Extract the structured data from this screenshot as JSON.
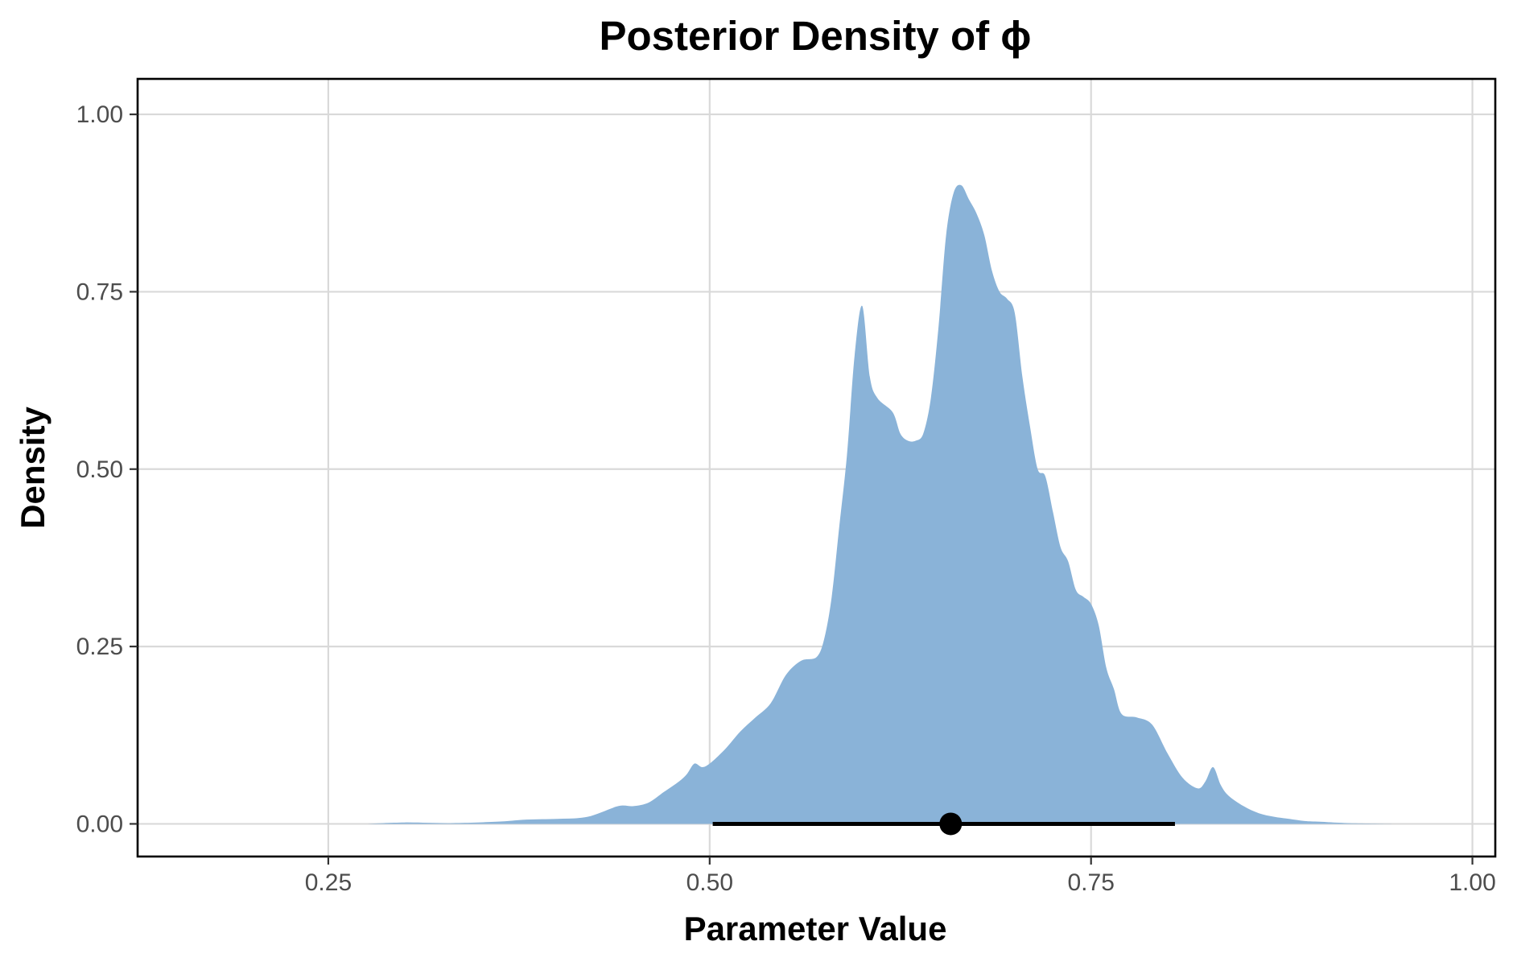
{
  "chart_data": {
    "type": "area",
    "title": "Posterior Density of ϕ",
    "xlabel": "Parameter Value",
    "ylabel": "Density",
    "xlim": [
      0.125,
      1.015
    ],
    "ylim": [
      -0.046,
      1.05
    ],
    "x_ticks": [
      {
        "value": 0.25,
        "label": "0.25"
      },
      {
        "value": 0.5,
        "label": "0.50"
      },
      {
        "value": 0.75,
        "label": "0.75"
      },
      {
        "value": 1.0,
        "label": "1.00"
      }
    ],
    "y_ticks": [
      {
        "value": 0.0,
        "label": "0.00"
      },
      {
        "value": 0.25,
        "label": "0.25"
      },
      {
        "value": 0.5,
        "label": "0.50"
      },
      {
        "value": 0.75,
        "label": "0.75"
      },
      {
        "value": 1.0,
        "label": "1.00"
      }
    ],
    "grid": true,
    "legend": "none",
    "fill_color": "#8ab3d8",
    "point_color": "#000000",
    "density": {
      "x": [
        0.275,
        0.3,
        0.33,
        0.36,
        0.38,
        0.4,
        0.42,
        0.44,
        0.45,
        0.46,
        0.47,
        0.48,
        0.485,
        0.49,
        0.495,
        0.5,
        0.51,
        0.52,
        0.53,
        0.54,
        0.55,
        0.56,
        0.57,
        0.575,
        0.58,
        0.585,
        0.59,
        0.595,
        0.6,
        0.605,
        0.61,
        0.62,
        0.625,
        0.63,
        0.635,
        0.64,
        0.645,
        0.65,
        0.655,
        0.66,
        0.665,
        0.67,
        0.675,
        0.68,
        0.685,
        0.69,
        0.695,
        0.7,
        0.705,
        0.71,
        0.715,
        0.72,
        0.725,
        0.73,
        0.735,
        0.74,
        0.745,
        0.75,
        0.755,
        0.76,
        0.765,
        0.77,
        0.78,
        0.79,
        0.8,
        0.81,
        0.82,
        0.825,
        0.83,
        0.835,
        0.84,
        0.85,
        0.86,
        0.87,
        0.88,
        0.89,
        0.9,
        0.92,
        0.95
      ],
      "y": [
        0.0,
        0.002,
        0.001,
        0.003,
        0.006,
        0.007,
        0.01,
        0.025,
        0.025,
        0.03,
        0.045,
        0.06,
        0.07,
        0.085,
        0.08,
        0.085,
        0.105,
        0.13,
        0.15,
        0.17,
        0.21,
        0.23,
        0.235,
        0.26,
        0.32,
        0.42,
        0.52,
        0.66,
        0.73,
        0.63,
        0.6,
        0.58,
        0.55,
        0.54,
        0.54,
        0.55,
        0.6,
        0.7,
        0.83,
        0.89,
        0.9,
        0.88,
        0.86,
        0.83,
        0.78,
        0.75,
        0.74,
        0.72,
        0.63,
        0.56,
        0.5,
        0.49,
        0.44,
        0.39,
        0.37,
        0.33,
        0.32,
        0.31,
        0.28,
        0.22,
        0.19,
        0.155,
        0.15,
        0.14,
        0.1,
        0.065,
        0.05,
        0.06,
        0.08,
        0.055,
        0.04,
        0.025,
        0.015,
        0.01,
        0.007,
        0.004,
        0.003,
        0.001,
        0.0
      ]
    },
    "interval": {
      "low": 0.502,
      "high": 0.805
    },
    "point_estimate": 0.658
  }
}
